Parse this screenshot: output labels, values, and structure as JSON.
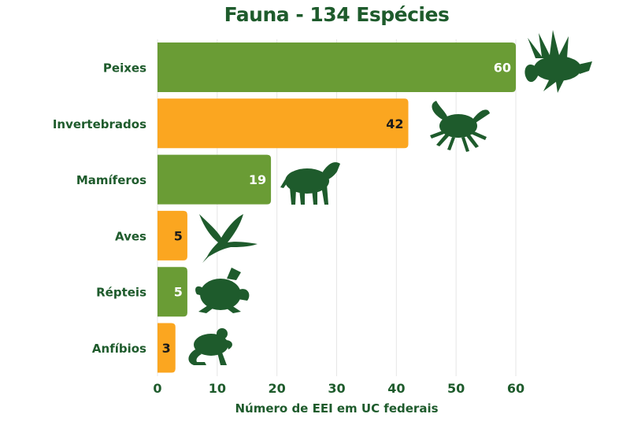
{
  "colors": {
    "green": "#6a9c35",
    "orange": "#fba620",
    "dark_green": "#1e5b2c",
    "grid": "#e6e6e6"
  },
  "chart_data": {
    "type": "bar",
    "orientation": "horizontal",
    "title": "Fauna - 134 Espécies",
    "xlabel": "Número de EEI em UC federais",
    "ylabel": "",
    "categories": [
      "Peixes",
      "Invertebrados",
      "Mamíferos",
      "Aves",
      "Répteis",
      "Anfíbios"
    ],
    "values": [
      60,
      42,
      19,
      5,
      5,
      3
    ],
    "bar_colors": [
      "green",
      "orange",
      "green",
      "orange",
      "green",
      "orange"
    ],
    "icons": [
      "lionfish-icon",
      "crab-icon",
      "boar-icon",
      "heron-icon",
      "turtle-icon",
      "frog-icon"
    ],
    "xlim": [
      0,
      60
    ],
    "xticks": [
      0,
      10,
      20,
      30,
      40,
      50,
      60
    ],
    "grid": true,
    "data_labels": true
  }
}
